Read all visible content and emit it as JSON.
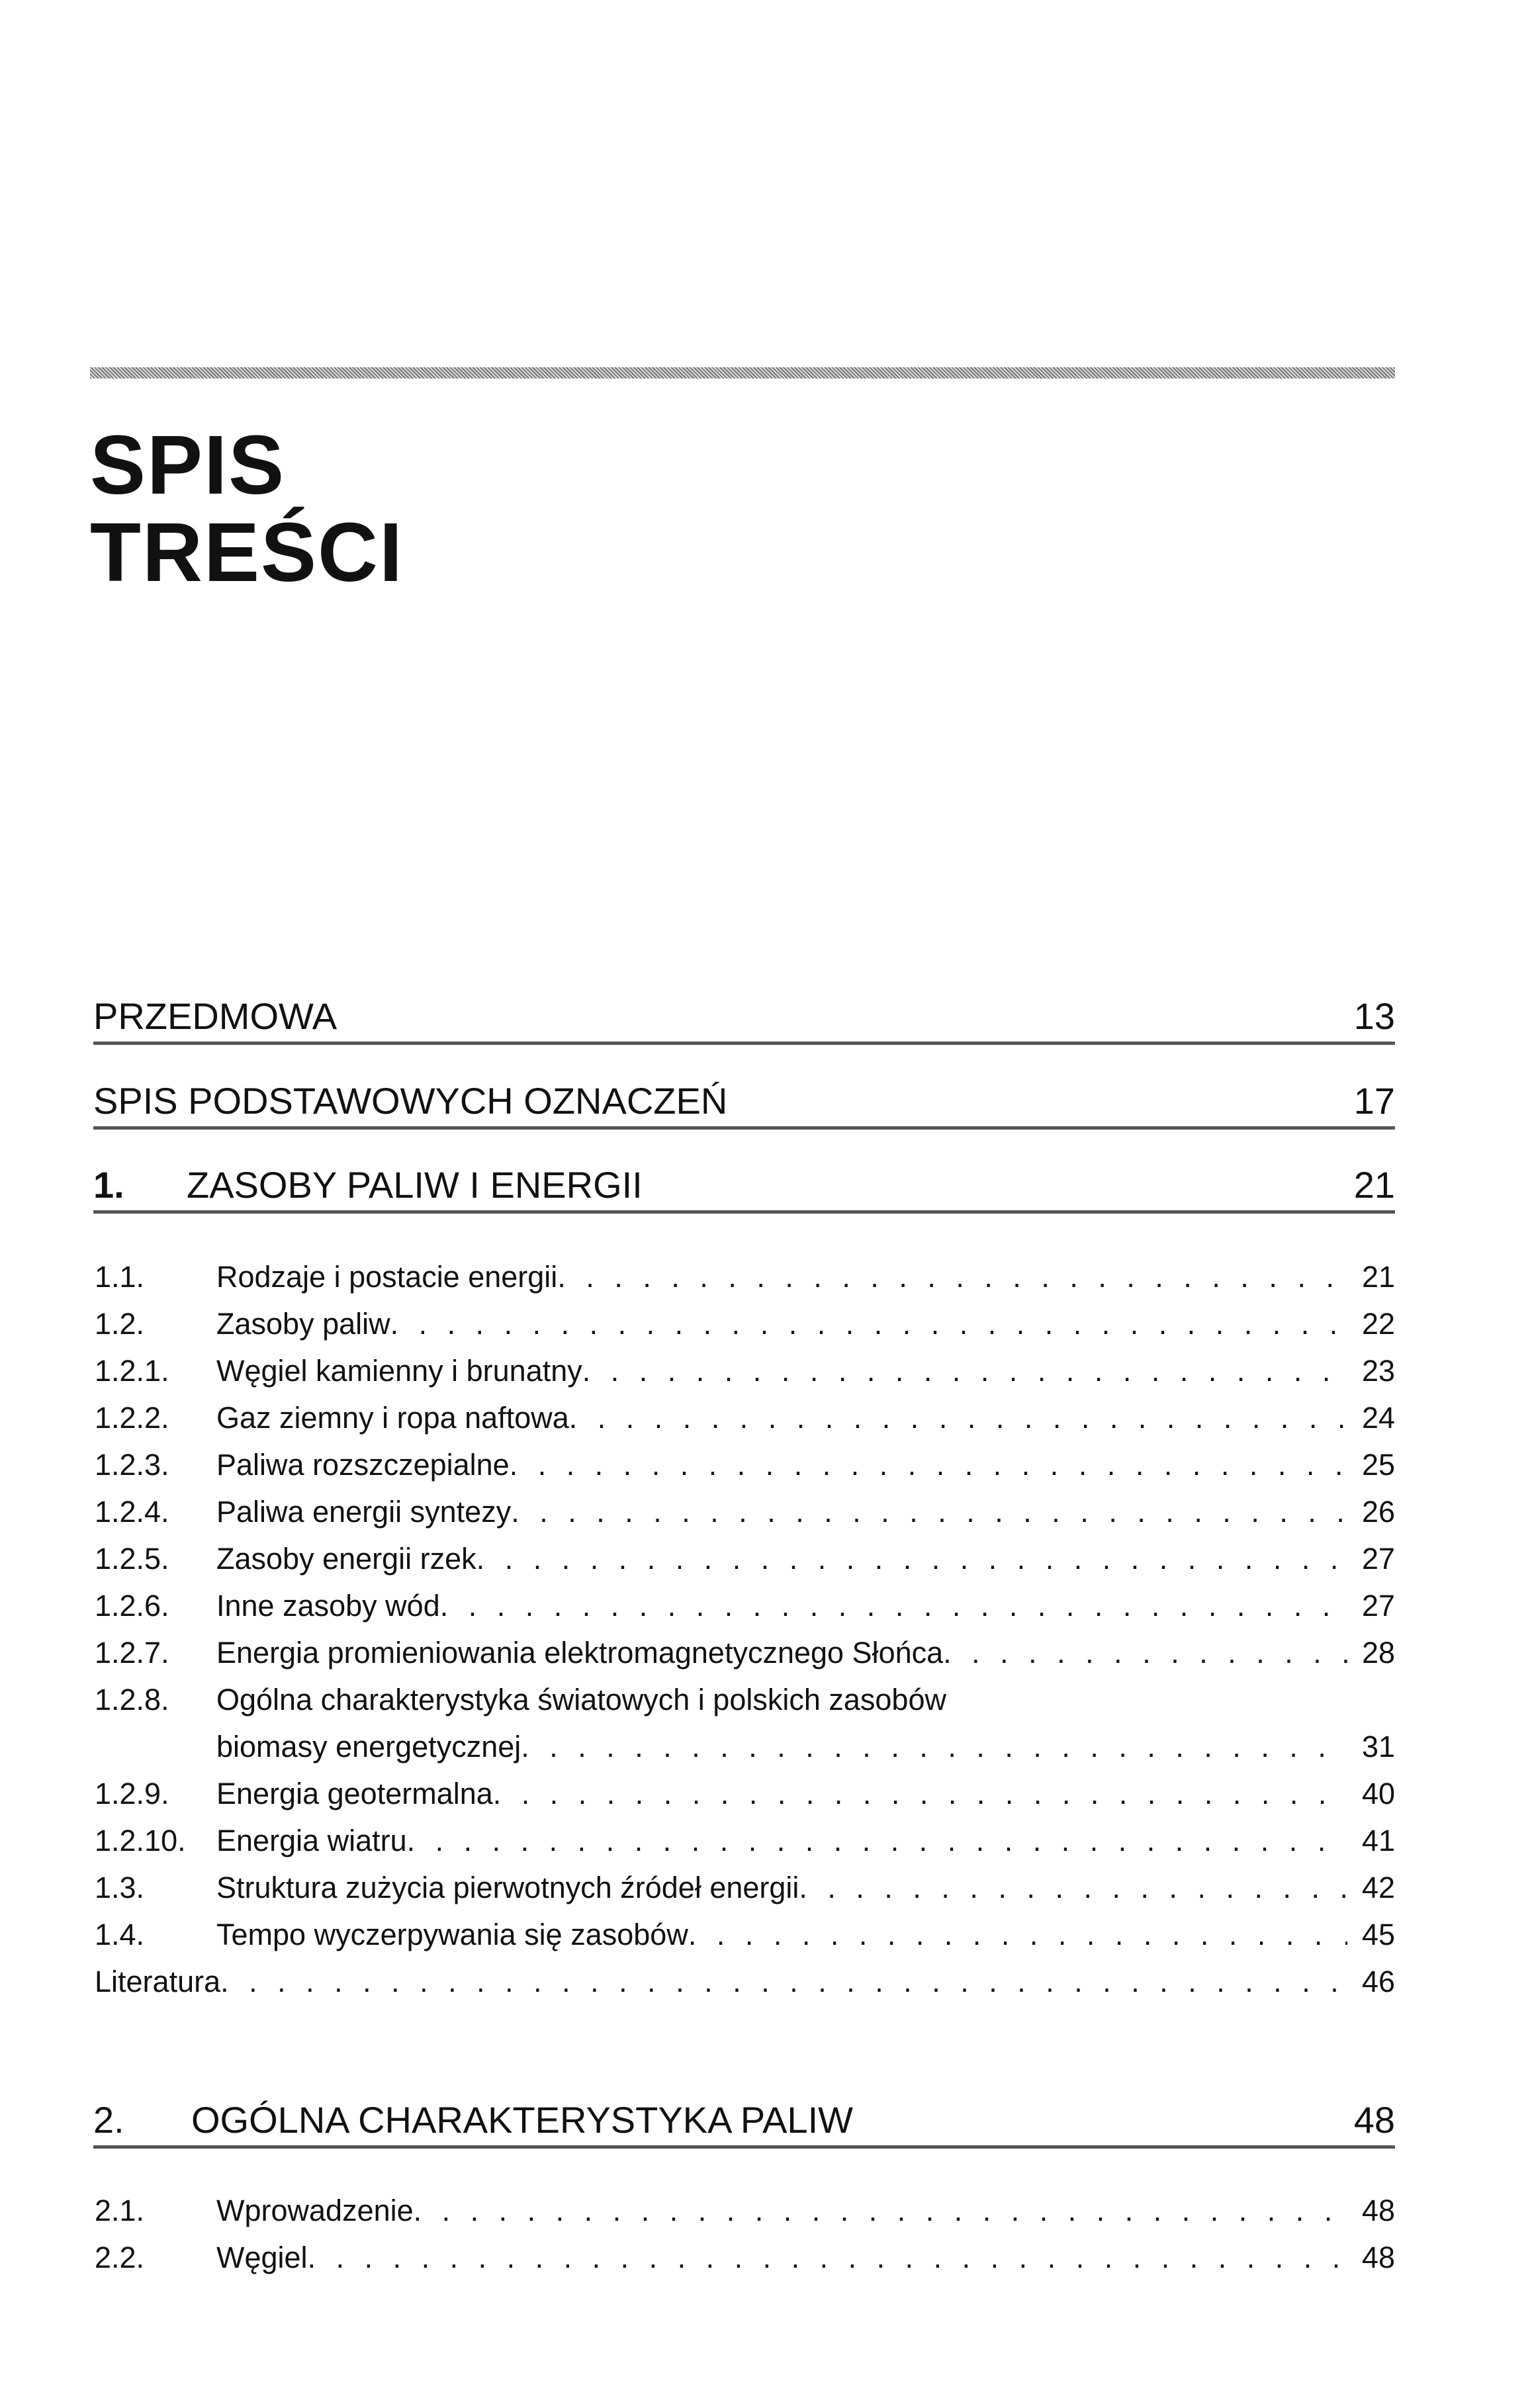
{
  "title": {
    "line1": "SPIS",
    "line2": "TREŚCI"
  },
  "sections": [
    {
      "label": "PRZEDMOWA",
      "page": "13"
    },
    {
      "label": "SPIS PODSTAWOWYCH OZNACZEŃ",
      "page": "17"
    }
  ],
  "chapter1": {
    "number": "1.",
    "label": "ZASOBY PALIW I ENERGII",
    "page": "21",
    "entries": [
      {
        "num": "1.1.",
        "text": "Rodzaje i postacie energii",
        "page": "21"
      },
      {
        "num": "1.2.",
        "text": "Zasoby paliw",
        "page": "22"
      },
      {
        "num": "1.2.1.",
        "text": "Węgiel kamienny i brunatny",
        "page": "23"
      },
      {
        "num": "1.2.2.",
        "text": "Gaz ziemny i ropa naftowa",
        "page": "24"
      },
      {
        "num": "1.2.3.",
        "text": "Paliwa rozszczepialne",
        "page": "25"
      },
      {
        "num": "1.2.4.",
        "text": "Paliwa energii syntezy",
        "page": "26"
      },
      {
        "num": "1.2.5.",
        "text": "Zasoby energii rzek",
        "page": "27"
      },
      {
        "num": "1.2.6.",
        "text": "Inne zasoby wód",
        "page": "27"
      },
      {
        "num": "1.2.7.",
        "text": "Energia promieniowania elektromagnetycznego Słońca",
        "page": "28"
      },
      {
        "num": "1.2.8.",
        "text_line1": "Ogólna charakterystyka światowych i polskich zasobów",
        "text": "biomasy energetycznej",
        "page": "31"
      },
      {
        "num": "1.2.9.",
        "text": "Energia geotermalna",
        "page": "40"
      },
      {
        "num": "1.2.10.",
        "text": "Energia wiatru",
        "page": "41"
      },
      {
        "num": "1.3.",
        "text": "Struktura zużycia pierwotnych źródeł energii",
        "page": "42"
      },
      {
        "num": "1.4.",
        "text": "Tempo wyczerpywania się zasobów",
        "page": "45"
      }
    ],
    "literature": {
      "text": "Literatura",
      "page": "46"
    }
  },
  "chapter2": {
    "number": "2.",
    "label": "OGÓLNA CHARAKTERYSTYKA PALIW",
    "page": "48",
    "entries": [
      {
        "num": "2.1.",
        "text": "Wprowadzenie",
        "page": "48"
      },
      {
        "num": "2.2.",
        "text": "Węgiel",
        "page": "48"
      }
    ]
  }
}
